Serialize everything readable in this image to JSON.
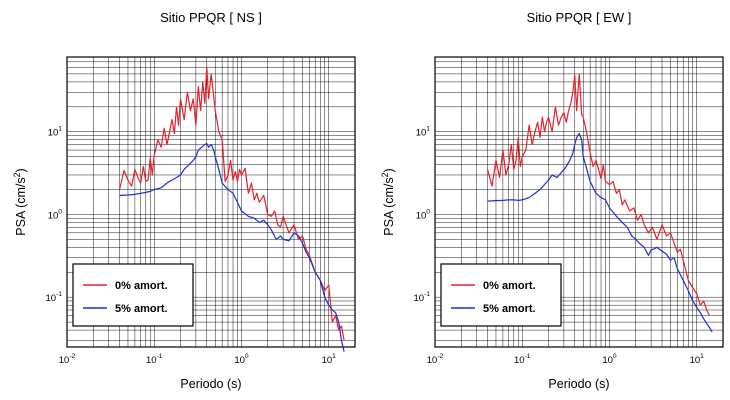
{
  "chart_data": [
    {
      "type": "line",
      "title": "Sitio PPQR [ NS ]",
      "xlabel": "Periodo (s)",
      "ylabel": {
        "base": "PSA (cm/s",
        "exp": "2",
        "close": ")"
      },
      "xscale": "log",
      "yscale": "log",
      "xlim": [
        0.01,
        20
      ],
      "ylim": [
        0.025,
        80
      ],
      "xticks": [
        {
          "value": 0.01,
          "base": "10",
          "exp": "-2"
        },
        {
          "value": 0.1,
          "base": "10",
          "exp": "-1"
        },
        {
          "value": 1,
          "base": "10",
          "exp": "0"
        },
        {
          "value": 10,
          "base": "10",
          "exp": "1"
        }
      ],
      "yticks": [
        {
          "value": 0.1,
          "base": "10",
          "exp": "-1"
        },
        {
          "value": 1,
          "base": "10",
          "exp": "0"
        },
        {
          "value": 10,
          "base": "10",
          "exp": "1"
        }
      ],
      "grid": true,
      "legend_position": "bottom-left",
      "series": [
        {
          "name": "0% amort.",
          "color": "#e8202a",
          "x": [
            0.04,
            0.045,
            0.05,
            0.055,
            0.06,
            0.065,
            0.07,
            0.075,
            0.08,
            0.085,
            0.09,
            0.095,
            0.1,
            0.11,
            0.12,
            0.13,
            0.14,
            0.15,
            0.16,
            0.17,
            0.18,
            0.19,
            0.2,
            0.22,
            0.24,
            0.26,
            0.28,
            0.3,
            0.32,
            0.34,
            0.36,
            0.38,
            0.4,
            0.42,
            0.45,
            0.5,
            0.55,
            0.6,
            0.65,
            0.7,
            0.75,
            0.8,
            0.85,
            0.9,
            0.95,
            1.0,
            1.1,
            1.2,
            1.3,
            1.4,
            1.5,
            1.6,
            1.8,
            2.0,
            2.2,
            2.4,
            2.6,
            2.8,
            3.0,
            3.5,
            4.0,
            4.5,
            5.0,
            5.5,
            6.0,
            7.0,
            8.0,
            9.0,
            10.0,
            11.0,
            12.0,
            13.0,
            14.0,
            15.0
          ],
          "y": [
            2.0,
            3.4,
            2.6,
            2.2,
            3.5,
            2.8,
            2.4,
            3.8,
            2.5,
            2.6,
            4.8,
            3.0,
            5.2,
            8.0,
            6.5,
            11.0,
            7.0,
            10.0,
            14.0,
            9.5,
            20.0,
            12.0,
            25.0,
            14.0,
            30.0,
            18.0,
            25.0,
            12.0,
            35.0,
            18.0,
            40.0,
            22.0,
            60.0,
            25.0,
            50.0,
            18.0,
            10.0,
            8.0,
            2.5,
            3.0,
            4.5,
            2.6,
            3.3,
            2.5,
            3.5,
            3.0,
            3.6,
            1.8,
            2.4,
            1.5,
            1.8,
            1.4,
            1.7,
            1.0,
            0.95,
            1.1,
            0.75,
            0.7,
            0.95,
            0.6,
            0.75,
            0.5,
            0.55,
            0.38,
            0.32,
            0.2,
            0.16,
            0.12,
            0.14,
            0.05,
            0.06,
            0.04,
            0.045,
            0.03
          ]
        },
        {
          "name": "5% amort.",
          "color": "#1c2fd6",
          "x": [
            0.04,
            0.05,
            0.06,
            0.07,
            0.08,
            0.09,
            0.1,
            0.12,
            0.14,
            0.16,
            0.18,
            0.2,
            0.22,
            0.25,
            0.28,
            0.3,
            0.32,
            0.35,
            0.38,
            0.4,
            0.42,
            0.45,
            0.48,
            0.5,
            0.55,
            0.6,
            0.7,
            0.8,
            0.9,
            1.0,
            1.2,
            1.4,
            1.6,
            1.8,
            2.0,
            2.2,
            2.5,
            2.8,
            3.0,
            3.5,
            4.0,
            4.5,
            5.0,
            5.5,
            6.0,
            7.0,
            8.0,
            9.0,
            10.0,
            11.0,
            12.0,
            13.0,
            14.0,
            15.0
          ],
          "y": [
            1.7,
            1.72,
            1.75,
            1.8,
            1.85,
            1.9,
            2.0,
            2.1,
            2.4,
            2.6,
            2.8,
            3.0,
            3.5,
            4.0,
            4.5,
            5.0,
            6.0,
            6.5,
            7.0,
            7.2,
            6.5,
            7.0,
            6.0,
            5.0,
            3.5,
            2.4,
            2.0,
            1.8,
            1.4,
            1.1,
            0.95,
            0.9,
            0.8,
            0.85,
            0.75,
            0.65,
            0.5,
            0.55,
            0.5,
            0.48,
            0.6,
            0.55,
            0.45,
            0.35,
            0.3,
            0.2,
            0.16,
            0.1,
            0.08,
            0.07,
            0.065,
            0.05,
            0.03,
            0.022
          ]
        }
      ]
    },
    {
      "type": "line",
      "title": "Sitio PPQR [ EW ]",
      "xlabel": "Periodo (s)",
      "ylabel": {
        "base": "PSA (cm/s",
        "exp": "2",
        "close": ")"
      },
      "xscale": "log",
      "yscale": "log",
      "xlim": [
        0.01,
        20
      ],
      "ylim": [
        0.025,
        80
      ],
      "xticks": [
        {
          "value": 0.01,
          "base": "10",
          "exp": "-2"
        },
        {
          "value": 0.1,
          "base": "10",
          "exp": "-1"
        },
        {
          "value": 1,
          "base": "10",
          "exp": "0"
        },
        {
          "value": 10,
          "base": "10",
          "exp": "1"
        }
      ],
      "yticks": [
        {
          "value": 0.1,
          "base": "10",
          "exp": "-1"
        },
        {
          "value": 1,
          "base": "10",
          "exp": "0"
        },
        {
          "value": 10,
          "base": "10",
          "exp": "1"
        }
      ],
      "grid": true,
      "legend_position": "bottom-left",
      "series": [
        {
          "name": "0% amort.",
          "color": "#e8202a",
          "x": [
            0.04,
            0.045,
            0.05,
            0.055,
            0.06,
            0.065,
            0.07,
            0.075,
            0.08,
            0.085,
            0.09,
            0.095,
            0.1,
            0.11,
            0.12,
            0.13,
            0.14,
            0.15,
            0.16,
            0.17,
            0.18,
            0.19,
            0.2,
            0.22,
            0.24,
            0.26,
            0.28,
            0.3,
            0.32,
            0.34,
            0.36,
            0.38,
            0.4,
            0.42,
            0.45,
            0.48,
            0.5,
            0.55,
            0.6,
            0.65,
            0.7,
            0.75,
            0.8,
            0.85,
            0.9,
            1.0,
            1.1,
            1.2,
            1.3,
            1.4,
            1.5,
            1.7,
            1.9,
            2.1,
            2.3,
            2.5,
            2.8,
            3.1,
            3.5,
            4.0,
            4.5,
            5.0,
            5.5,
            6.0,
            6.5,
            7.0,
            8.0,
            9.0,
            10.0,
            11.0,
            12.0,
            13.0,
            14.0
          ],
          "y": [
            3.5,
            2.2,
            4.5,
            2.8,
            6.0,
            3.0,
            4.0,
            7.0,
            3.5,
            4.5,
            8.5,
            3.8,
            5.0,
            6.0,
            12.0,
            7.0,
            10.0,
            13.0,
            8.5,
            15.0,
            10.0,
            13.0,
            15.0,
            10.0,
            20.0,
            12.0,
            15.0,
            17.0,
            13.0,
            18.0,
            22.0,
            30.0,
            48.0,
            18.0,
            50.0,
            16.0,
            15.0,
            9.5,
            5.5,
            3.8,
            4.5,
            3.5,
            2.7,
            4.0,
            2.5,
            2.3,
            2.5,
            1.8,
            2.0,
            1.3,
            1.5,
            1.1,
            1.2,
            0.85,
            1.0,
            0.75,
            0.6,
            0.7,
            0.5,
            0.75,
            0.55,
            0.6,
            0.45,
            0.35,
            0.38,
            0.28,
            0.16,
            0.13,
            0.11,
            0.08,
            0.09,
            0.07,
            0.06
          ]
        },
        {
          "name": "5% amort.",
          "color": "#1c2fd6",
          "x": [
            0.04,
            0.05,
            0.06,
            0.07,
            0.08,
            0.09,
            0.1,
            0.12,
            0.14,
            0.16,
            0.18,
            0.2,
            0.22,
            0.25,
            0.28,
            0.3,
            0.32,
            0.35,
            0.38,
            0.4,
            0.42,
            0.45,
            0.48,
            0.5,
            0.55,
            0.6,
            0.7,
            0.8,
            0.9,
            1.0,
            1.2,
            1.4,
            1.6,
            1.8,
            2.0,
            2.2,
            2.5,
            2.8,
            3.0,
            3.5,
            4.0,
            4.5,
            5.0,
            5.5,
            6.0,
            7.0,
            8.0,
            9.0,
            10.0,
            11.0,
            12.0,
            13.0,
            14.0,
            15.0
          ],
          "y": [
            1.45,
            1.47,
            1.48,
            1.5,
            1.5,
            1.48,
            1.5,
            1.6,
            1.8,
            2.0,
            2.3,
            2.6,
            3.0,
            2.8,
            3.2,
            3.5,
            3.8,
            4.5,
            5.5,
            7.0,
            8.5,
            9.5,
            8.0,
            5.0,
            3.5,
            2.5,
            1.8,
            1.6,
            1.5,
            1.2,
            0.95,
            0.8,
            0.7,
            0.55,
            0.5,
            0.45,
            0.4,
            0.32,
            0.37,
            0.4,
            0.36,
            0.33,
            0.28,
            0.3,
            0.22,
            0.16,
            0.12,
            0.09,
            0.075,
            0.065,
            0.055,
            0.048,
            0.043,
            0.038
          ]
        }
      ]
    }
  ]
}
